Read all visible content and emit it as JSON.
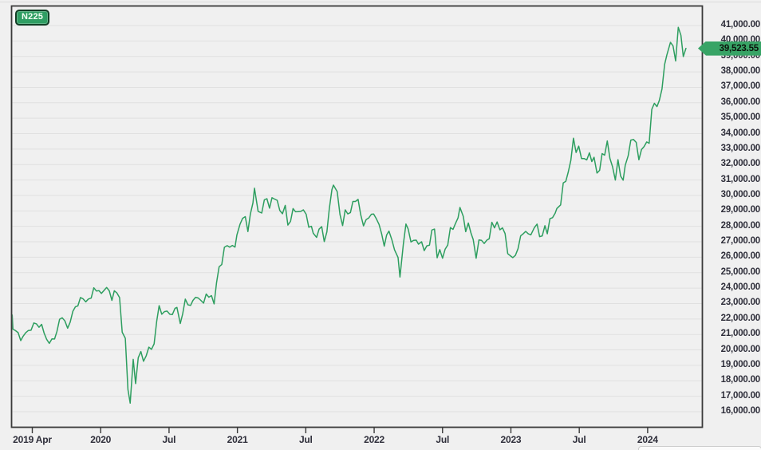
{
  "chart": {
    "symbol_badge_label": "N225",
    "last_price_label": "39,523.55",
    "colors": {
      "line": "#2d9e5f",
      "plot_background": "#f0f0f0",
      "gridline": "#e0e0e0",
      "plot_border": "#3a3a3a",
      "symbol_badge_fill": "#2f9e63",
      "price_badge_fill": "#38a466",
      "axis_text": "#2e2e3a"
    }
  },
  "chart_data": {
    "type": "line",
    "title": "N225",
    "series_name": "N225",
    "legend_position": "top-left",
    "grid": "horizontal-only",
    "last_value": 39523.55,
    "ylim": [
      15000,
      42300
    ],
    "y_tick_step": 1000,
    "y_ticks": [
      16000,
      17000,
      18000,
      19000,
      20000,
      21000,
      22000,
      23000,
      24000,
      25000,
      26000,
      27000,
      28000,
      29000,
      30000,
      31000,
      32000,
      33000,
      34000,
      35000,
      36000,
      37000,
      38000,
      39000,
      40000,
      41000
    ],
    "x_ticks": [
      {
        "label": "2019 Apr",
        "date": "2019-07-01"
      },
      {
        "label": "2020",
        "date": "2020-01-01"
      },
      {
        "label": "Jul",
        "date": "2020-07-01"
      },
      {
        "label": "2021",
        "date": "2021-01-01"
      },
      {
        "label": "Jul",
        "date": "2021-07-01"
      },
      {
        "label": "2022",
        "date": "2022-01-01"
      },
      {
        "label": "Jul",
        "date": "2022-07-01"
      },
      {
        "label": "2023",
        "date": "2023-01-01"
      },
      {
        "label": "Jul",
        "date": "2023-07-01"
      },
      {
        "label": "2024",
        "date": "2024-01-01"
      }
    ],
    "points": [
      [
        "2019-05-03",
        22259
      ],
      [
        "2019-05-10",
        21345
      ],
      [
        "2019-05-17",
        21250
      ],
      [
        "2019-05-24",
        21117
      ],
      [
        "2019-05-31",
        20601
      ],
      [
        "2019-06-07",
        20885
      ],
      [
        "2019-06-14",
        21117
      ],
      [
        "2019-06-21",
        21259
      ],
      [
        "2019-06-28",
        21276
      ],
      [
        "2019-07-05",
        21746
      ],
      [
        "2019-07-12",
        21686
      ],
      [
        "2019-07-19",
        21467
      ],
      [
        "2019-07-26",
        21658
      ],
      [
        "2019-08-02",
        21087
      ],
      [
        "2019-08-09",
        20685
      ],
      [
        "2019-08-16",
        20419
      ],
      [
        "2019-08-23",
        20711
      ],
      [
        "2019-08-30",
        20704
      ],
      [
        "2019-09-06",
        21200
      ],
      [
        "2019-09-13",
        21988
      ],
      [
        "2019-09-20",
        22079
      ],
      [
        "2019-09-27",
        21879
      ],
      [
        "2019-10-04",
        21410
      ],
      [
        "2019-10-11",
        21799
      ],
      [
        "2019-10-18",
        22493
      ],
      [
        "2019-10-25",
        22800
      ],
      [
        "2019-11-01",
        22851
      ],
      [
        "2019-11-08",
        23392
      ],
      [
        "2019-11-15",
        23303
      ],
      [
        "2019-11-22",
        23113
      ],
      [
        "2019-11-29",
        23294
      ],
      [
        "2019-12-06",
        23354
      ],
      [
        "2019-12-13",
        24023
      ],
      [
        "2019-12-20",
        23817
      ],
      [
        "2019-12-27",
        23838
      ],
      [
        "2020-01-03",
        23657
      ],
      [
        "2020-01-10",
        23851
      ],
      [
        "2020-01-17",
        24041
      ],
      [
        "2020-01-24",
        23827
      ],
      [
        "2020-01-31",
        23205
      ],
      [
        "2020-02-07",
        23828
      ],
      [
        "2020-02-14",
        23688
      ],
      [
        "2020-02-21",
        23387
      ],
      [
        "2020-02-28",
        21143
      ],
      [
        "2020-03-06",
        20750
      ],
      [
        "2020-03-13",
        17431
      ],
      [
        "2020-03-19",
        16553
      ],
      [
        "2020-03-27",
        19389
      ],
      [
        "2020-04-03",
        17820
      ],
      [
        "2020-04-10",
        19499
      ],
      [
        "2020-04-17",
        19897
      ],
      [
        "2020-04-24",
        19262
      ],
      [
        "2020-05-01",
        19619
      ],
      [
        "2020-05-08",
        20179
      ],
      [
        "2020-05-15",
        20037
      ],
      [
        "2020-05-22",
        20388
      ],
      [
        "2020-05-29",
        21877
      ],
      [
        "2020-06-05",
        22864
      ],
      [
        "2020-06-12",
        22305
      ],
      [
        "2020-06-19",
        22479
      ],
      [
        "2020-06-26",
        22512
      ],
      [
        "2020-07-03",
        22306
      ],
      [
        "2020-07-10",
        22291
      ],
      [
        "2020-07-17",
        22696
      ],
      [
        "2020-07-22",
        22752
      ],
      [
        "2020-07-31",
        21710
      ],
      [
        "2020-08-07",
        22330
      ],
      [
        "2020-08-14",
        23289
      ],
      [
        "2020-08-21",
        22920
      ],
      [
        "2020-08-28",
        22882
      ],
      [
        "2020-09-04",
        23205
      ],
      [
        "2020-09-11",
        23406
      ],
      [
        "2020-09-18",
        23360
      ],
      [
        "2020-09-25",
        23205
      ],
      [
        "2020-10-02",
        23030
      ],
      [
        "2020-10-09",
        23620
      ],
      [
        "2020-10-16",
        23411
      ],
      [
        "2020-10-23",
        23517
      ],
      [
        "2020-10-30",
        22977
      ],
      [
        "2020-11-06",
        24325
      ],
      [
        "2020-11-13",
        25386
      ],
      [
        "2020-11-20",
        25527
      ],
      [
        "2020-11-27",
        26645
      ],
      [
        "2020-12-04",
        26751
      ],
      [
        "2020-12-11",
        26653
      ],
      [
        "2020-12-18",
        26763
      ],
      [
        "2020-12-25",
        26657
      ],
      [
        "2020-12-30",
        27444
      ],
      [
        "2021-01-08",
        28139
      ],
      [
        "2021-01-15",
        28519
      ],
      [
        "2021-01-22",
        28631
      ],
      [
        "2021-01-29",
        27663
      ],
      [
        "2021-02-05",
        28779
      ],
      [
        "2021-02-12",
        29520
      ],
      [
        "2021-02-16",
        30467
      ],
      [
        "2021-02-26",
        28966
      ],
      [
        "2021-03-05",
        28864
      ],
      [
        "2021-03-12",
        29718
      ],
      [
        "2021-03-19",
        29792
      ],
      [
        "2021-03-26",
        29177
      ],
      [
        "2021-04-02",
        29854
      ],
      [
        "2021-04-09",
        29768
      ],
      [
        "2021-04-16",
        29683
      ],
      [
        "2021-04-23",
        29020
      ],
      [
        "2021-04-30",
        28813
      ],
      [
        "2021-05-07",
        29358
      ],
      [
        "2021-05-14",
        28084
      ],
      [
        "2021-05-21",
        28318
      ],
      [
        "2021-05-28",
        29149
      ],
      [
        "2021-06-04",
        28942
      ],
      [
        "2021-06-11",
        28949
      ],
      [
        "2021-06-18",
        28964
      ],
      [
        "2021-06-25",
        29066
      ],
      [
        "2021-07-02",
        28783
      ],
      [
        "2021-07-09",
        27940
      ],
      [
        "2021-07-16",
        28003
      ],
      [
        "2021-07-21",
        27548
      ],
      [
        "2021-07-30",
        27284
      ],
      [
        "2021-08-06",
        27820
      ],
      [
        "2021-08-13",
        27977
      ],
      [
        "2021-08-20",
        27013
      ],
      [
        "2021-08-27",
        27641
      ],
      [
        "2021-09-03",
        29128
      ],
      [
        "2021-09-10",
        30382
      ],
      [
        "2021-09-14",
        30670
      ],
      [
        "2021-09-24",
        30249
      ],
      [
        "2021-10-01",
        28771
      ],
      [
        "2021-10-08",
        28049
      ],
      [
        "2021-10-15",
        29069
      ],
      [
        "2021-10-22",
        28805
      ],
      [
        "2021-10-29",
        28893
      ],
      [
        "2021-11-05",
        29612
      ],
      [
        "2021-11-12",
        29610
      ],
      [
        "2021-11-19",
        29746
      ],
      [
        "2021-11-26",
        28752
      ],
      [
        "2021-12-03",
        28030
      ],
      [
        "2021-12-10",
        28438
      ],
      [
        "2021-12-17",
        28546
      ],
      [
        "2021-12-24",
        28783
      ],
      [
        "2021-12-30",
        28792
      ],
      [
        "2022-01-07",
        28479
      ],
      [
        "2022-01-14",
        28124
      ],
      [
        "2022-01-21",
        27522
      ],
      [
        "2022-01-28",
        26717
      ],
      [
        "2022-02-04",
        27440
      ],
      [
        "2022-02-10",
        27696
      ],
      [
        "2022-02-18",
        27122
      ],
      [
        "2022-02-25",
        26477
      ],
      [
        "2022-03-04",
        25985
      ],
      [
        "2022-03-09",
        24718
      ],
      [
        "2022-03-18",
        26827
      ],
      [
        "2022-03-25",
        28149
      ],
      [
        "2022-03-31",
        27821
      ],
      [
        "2022-04-08",
        26986
      ],
      [
        "2022-04-15",
        27093
      ],
      [
        "2022-04-22",
        27105
      ],
      [
        "2022-04-28",
        26848
      ],
      [
        "2022-05-06",
        27004
      ],
      [
        "2022-05-13",
        26428
      ],
      [
        "2022-05-20",
        26739
      ],
      [
        "2022-05-27",
        26782
      ],
      [
        "2022-06-03",
        27762
      ],
      [
        "2022-06-10",
        27824
      ],
      [
        "2022-06-17",
        25963
      ],
      [
        "2022-06-24",
        26492
      ],
      [
        "2022-07-01",
        25936
      ],
      [
        "2022-07-08",
        26517
      ],
      [
        "2022-07-15",
        26788
      ],
      [
        "2022-07-22",
        27915
      ],
      [
        "2022-07-29",
        27802
      ],
      [
        "2022-08-05",
        28176
      ],
      [
        "2022-08-12",
        28547
      ],
      [
        "2022-08-17",
        29223
      ],
      [
        "2022-08-26",
        28641
      ],
      [
        "2022-09-02",
        27651
      ],
      [
        "2022-09-09",
        28214
      ],
      [
        "2022-09-16",
        27568
      ],
      [
        "2022-09-22",
        27154
      ],
      [
        "2022-09-30",
        25937
      ],
      [
        "2022-10-07",
        27116
      ],
      [
        "2022-10-14",
        27091
      ],
      [
        "2022-10-21",
        26891
      ],
      [
        "2022-10-28",
        27105
      ],
      [
        "2022-11-04",
        27200
      ],
      [
        "2022-11-11",
        28264
      ],
      [
        "2022-11-18",
        27900
      ],
      [
        "2022-11-25",
        28283
      ],
      [
        "2022-12-02",
        27778
      ],
      [
        "2022-12-09",
        27901
      ],
      [
        "2022-12-16",
        27527
      ],
      [
        "2022-12-23",
        26235
      ],
      [
        "2022-12-30",
        26095
      ],
      [
        "2023-01-06",
        25974
      ],
      [
        "2023-01-13",
        26119
      ],
      [
        "2023-01-20",
        26553
      ],
      [
        "2023-01-27",
        27383
      ],
      [
        "2023-02-03",
        27509
      ],
      [
        "2023-02-10",
        27671
      ],
      [
        "2023-02-17",
        27513
      ],
      [
        "2023-02-24",
        27453
      ],
      [
        "2023-03-03",
        27927
      ],
      [
        "2023-03-10",
        28144
      ],
      [
        "2023-03-17",
        27334
      ],
      [
        "2023-03-24",
        27385
      ],
      [
        "2023-03-31",
        28041
      ],
      [
        "2023-04-07",
        27518
      ],
      [
        "2023-04-14",
        28493
      ],
      [
        "2023-04-21",
        28564
      ],
      [
        "2023-04-28",
        28856
      ],
      [
        "2023-05-02",
        29158
      ],
      [
        "2023-05-12",
        29388
      ],
      [
        "2023-05-19",
        30808
      ],
      [
        "2023-05-26",
        30916
      ],
      [
        "2023-06-02",
        31524
      ],
      [
        "2023-06-09",
        32265
      ],
      [
        "2023-06-16",
        33706
      ],
      [
        "2023-06-23",
        32782
      ],
      [
        "2023-06-30",
        33189
      ],
      [
        "2023-07-07",
        32388
      ],
      [
        "2023-07-14",
        32391
      ],
      [
        "2023-07-21",
        32304
      ],
      [
        "2023-07-28",
        32759
      ],
      [
        "2023-08-04",
        32193
      ],
      [
        "2023-08-10",
        32474
      ],
      [
        "2023-08-18",
        31451
      ],
      [
        "2023-08-25",
        31624
      ],
      [
        "2023-09-01",
        32711
      ],
      [
        "2023-09-08",
        32607
      ],
      [
        "2023-09-15",
        33533
      ],
      [
        "2023-09-22",
        32402
      ],
      [
        "2023-09-29",
        31858
      ],
      [
        "2023-10-06",
        30995
      ],
      [
        "2023-10-13",
        32316
      ],
      [
        "2023-10-20",
        31259
      ],
      [
        "2023-10-27",
        30992
      ],
      [
        "2023-11-02",
        31950
      ],
      [
        "2023-11-10",
        32568
      ],
      [
        "2023-11-17",
        33585
      ],
      [
        "2023-11-24",
        33626
      ],
      [
        "2023-12-01",
        33432
      ],
      [
        "2023-12-08",
        32308
      ],
      [
        "2023-12-15",
        32971
      ],
      [
        "2023-12-22",
        33169
      ],
      [
        "2023-12-29",
        33464
      ],
      [
        "2024-01-05",
        33378
      ],
      [
        "2024-01-12",
        35577
      ],
      [
        "2024-01-19",
        35963
      ],
      [
        "2024-01-26",
        35751
      ],
      [
        "2024-02-02",
        36158
      ],
      [
        "2024-02-09",
        36897
      ],
      [
        "2024-02-16",
        38487
      ],
      [
        "2024-02-22",
        39098
      ],
      [
        "2024-03-01",
        39910
      ],
      [
        "2024-03-08",
        39689
      ],
      [
        "2024-03-15",
        38708
      ],
      [
        "2024-03-22",
        40888
      ],
      [
        "2024-03-29",
        40369
      ],
      [
        "2024-04-05",
        38992
      ],
      [
        "2024-04-12",
        39523.55
      ]
    ]
  }
}
